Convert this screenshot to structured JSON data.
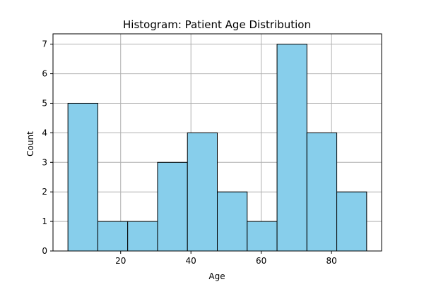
{
  "chart_data": {
    "type": "bar",
    "title": "Histogram: Patient Age Distribution",
    "xlabel": "Age",
    "ylabel": "Count",
    "bins": [
      {
        "start": 5,
        "end": 13.5,
        "count": 5
      },
      {
        "start": 13.5,
        "end": 22,
        "count": 1
      },
      {
        "start": 22,
        "end": 30.5,
        "count": 1
      },
      {
        "start": 30.5,
        "end": 39,
        "count": 3
      },
      {
        "start": 39,
        "end": 47.5,
        "count": 4
      },
      {
        "start": 47.5,
        "end": 56,
        "count": 2
      },
      {
        "start": 56,
        "end": 64.5,
        "count": 1
      },
      {
        "start": 64.5,
        "end": 73,
        "count": 7
      },
      {
        "start": 73,
        "end": 81.5,
        "count": 4
      },
      {
        "start": 81.5,
        "end": 90,
        "count": 2
      }
    ],
    "xlim": [
      0.75,
      94.25
    ],
    "ylim": [
      0,
      7.35
    ],
    "xticks": [
      "20",
      "40",
      "60",
      "80"
    ],
    "yticks": [
      "0",
      "1",
      "2",
      "3",
      "4",
      "5",
      "6",
      "7"
    ],
    "grid": true,
    "colors": {
      "bar_fill": "#87ceeb",
      "bar_edge": "#000000",
      "grid": "#b0b0b0"
    }
  }
}
